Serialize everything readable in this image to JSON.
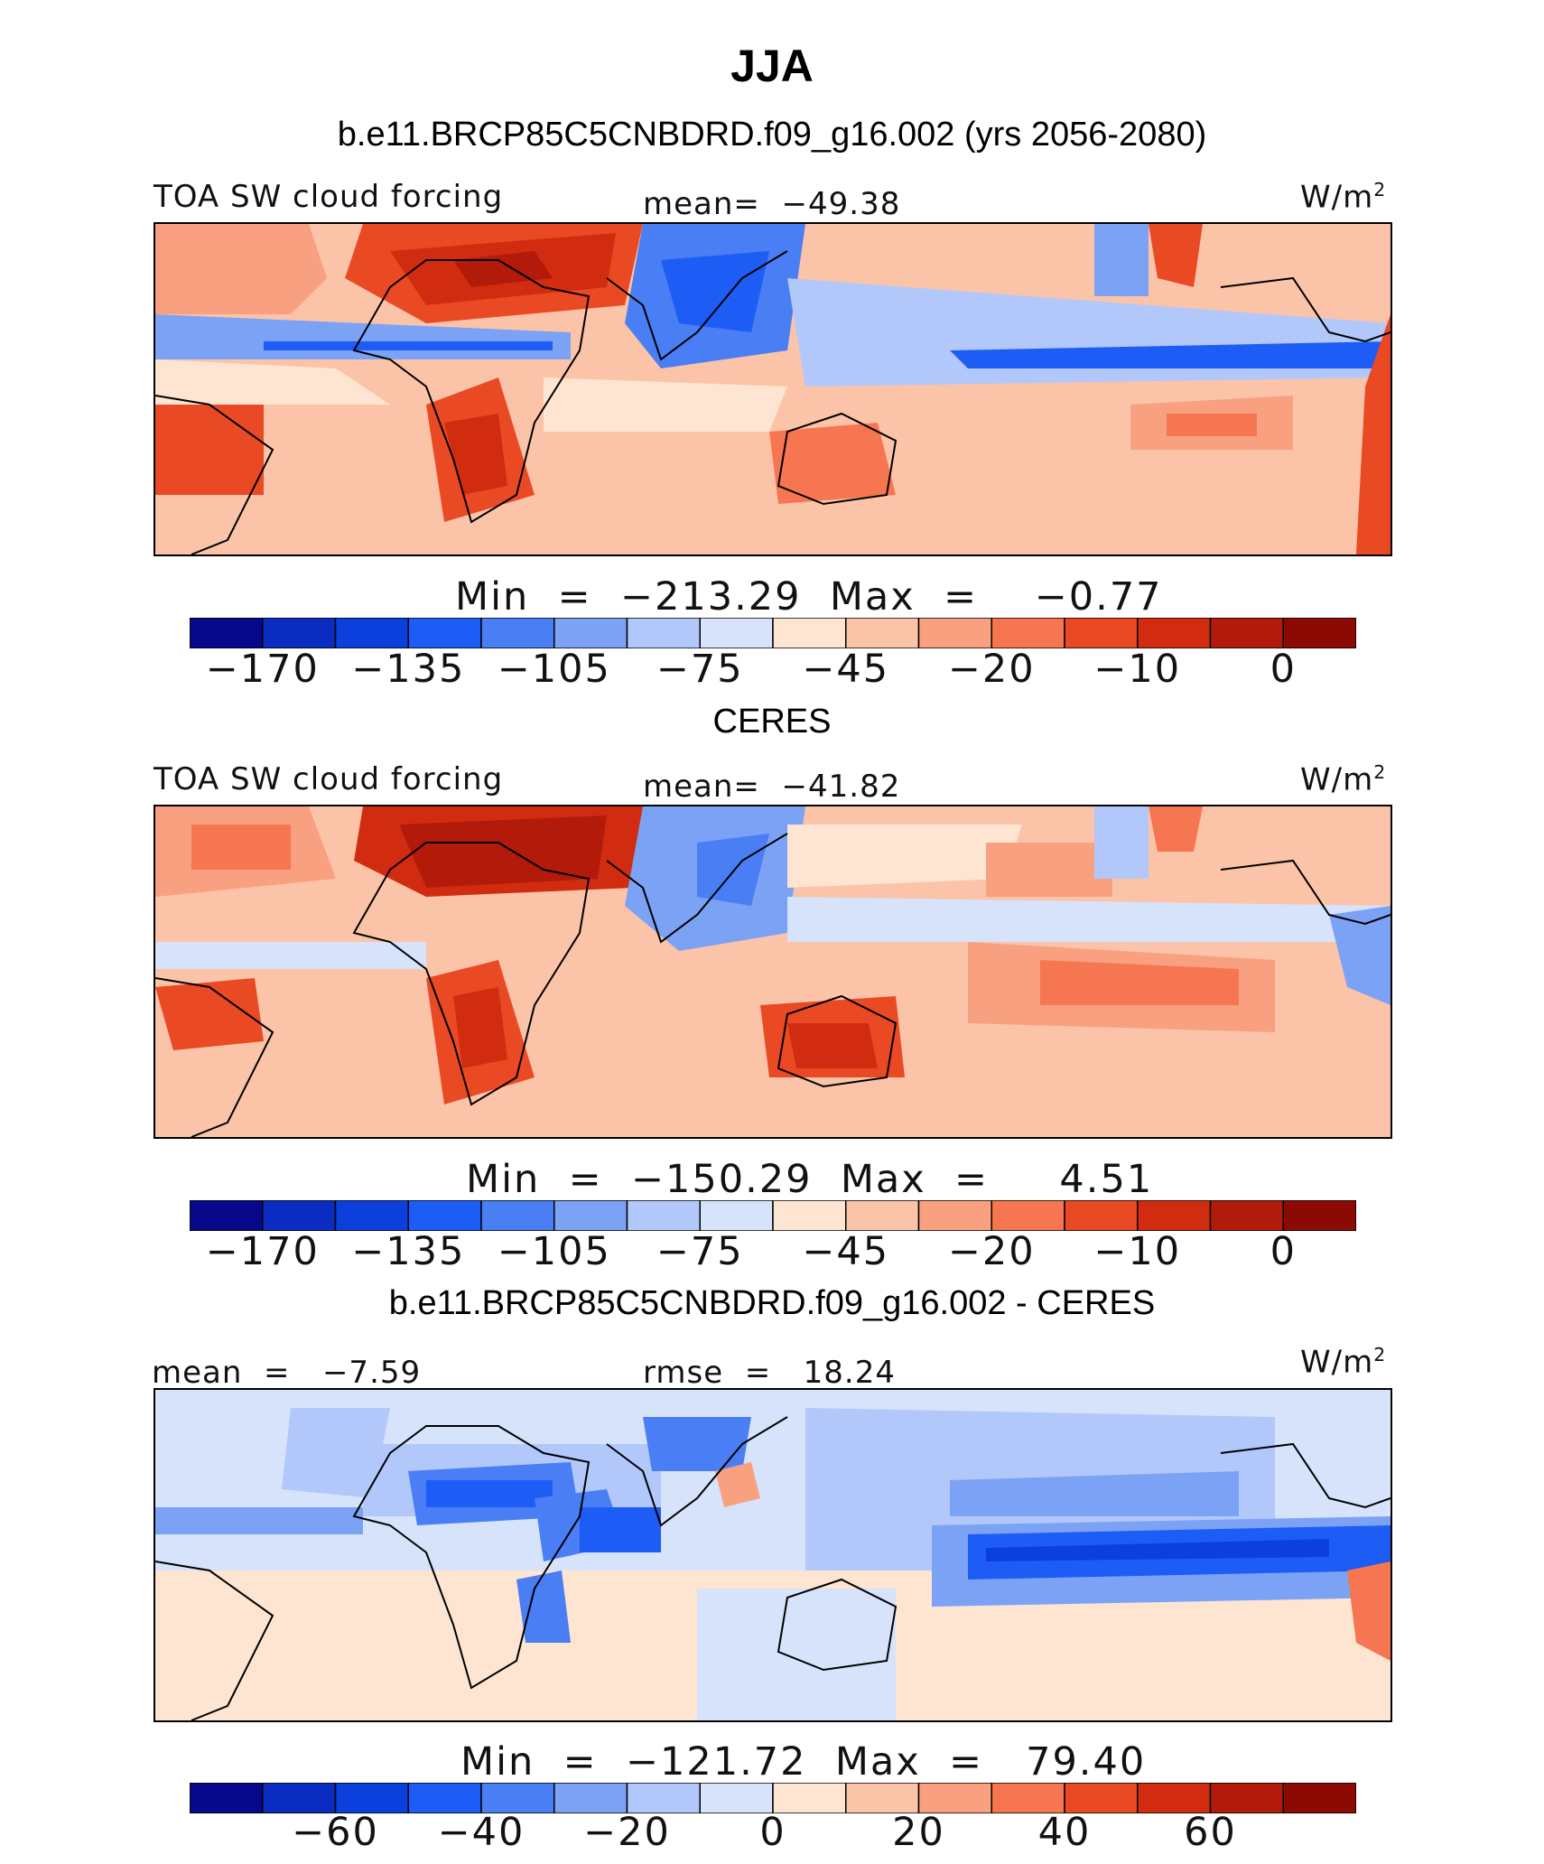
{
  "figure": {
    "season": "JJA",
    "units_label": "W/m",
    "units_exponent": "2",
    "variable": "TOA SW cloud forcing"
  },
  "colors": {
    "abs_palette": [
      "#08088a",
      "#0a2cc0",
      "#0c40dd",
      "#1e5cf6",
      "#4a7ef4",
      "#7ca2f5",
      "#b2c8fb",
      "#d6e3fb",
      "#fde5d2",
      "#fbc4a8",
      "#f9a080",
      "#f57650",
      "#e94a24",
      "#d22c10",
      "#b21a0a",
      "#8c0a04"
    ],
    "diff_palette": [
      "#08088a",
      "#0a2cc0",
      "#0c40dd",
      "#1e5cf6",
      "#4a7ef4",
      "#7ca2f5",
      "#b2c8fb",
      "#d6e3fb",
      "#fde5d2",
      "#fbc4a8",
      "#f9a080",
      "#f57650",
      "#e94a24",
      "#d22c10",
      "#b21a0a",
      "#8c0a04"
    ]
  },
  "panels": [
    {
      "header": "b.e11.BRCP85C5CNBDRD.f09_g16.002 (yrs 2056-2080)",
      "left_label": "TOA SW cloud forcing",
      "center_label": "mean=  −49.38",
      "range_label": "Min  =  −213.29  Max  =    −0.77",
      "ticks": [
        "−170",
        "−135",
        "−105",
        "−75",
        "−45",
        "−20",
        "−10",
        "0"
      ]
    },
    {
      "header": "CERES",
      "left_label": "TOA SW cloud forcing",
      "center_label": "mean=  −41.82",
      "range_label": "Min  =  −150.29  Max  =     4.51",
      "ticks": [
        "−170",
        "−135",
        "−105",
        "−75",
        "−45",
        "−20",
        "−10",
        "0"
      ]
    },
    {
      "header": "b.e11.BRCP85C5CNBDRD.f09_g16.002 - CERES",
      "left_label": "mean  =   −7.59",
      "center_label": "rmse  =   18.24",
      "range_label": "Min  =  −121.72  Max  =   79.40",
      "ticks": [
        "−60",
        "−40",
        "−20",
        "0",
        "20",
        "40",
        "60"
      ]
    }
  ],
  "chart_data": [
    {
      "type": "heatmap",
      "title": "b.e11.BRCP85C5CNBDRD.f09_g16.002 (yrs 2056-2080)",
      "variable": "TOA SW cloud forcing",
      "units": "W/m2",
      "mean": -49.38,
      "min": -213.29,
      "max": -0.77,
      "contour_levels": [
        -170,
        -150,
        -135,
        -120,
        -105,
        -90,
        -75,
        -60,
        -45,
        -30,
        -20,
        -15,
        -10,
        -5,
        0
      ],
      "colorbar_tick_labels": [
        -170,
        -135,
        -105,
        -75,
        -45,
        -20,
        -10,
        0
      ]
    },
    {
      "type": "heatmap",
      "title": "CERES",
      "variable": "TOA SW cloud forcing",
      "units": "W/m2",
      "mean": -41.82,
      "min": -150.29,
      "max": 4.51,
      "contour_levels": [
        -170,
        -150,
        -135,
        -120,
        -105,
        -90,
        -75,
        -60,
        -45,
        -30,
        -20,
        -15,
        -10,
        -5,
        0
      ],
      "colorbar_tick_labels": [
        -170,
        -135,
        -105,
        -75,
        -45,
        -20,
        -10,
        0
      ]
    },
    {
      "type": "heatmap",
      "title": "b.e11.BRCP85C5CNBDRD.f09_g16.002 - CERES",
      "units": "W/m2",
      "mean": -7.59,
      "rmse": 18.24,
      "min": -121.72,
      "max": 79.4,
      "contour_levels": [
        -70,
        -60,
        -50,
        -40,
        -30,
        -20,
        -10,
        0,
        10,
        20,
        30,
        40,
        50,
        60,
        70
      ],
      "colorbar_tick_labels": [
        -60,
        -40,
        -20,
        0,
        20,
        40,
        60
      ]
    }
  ]
}
